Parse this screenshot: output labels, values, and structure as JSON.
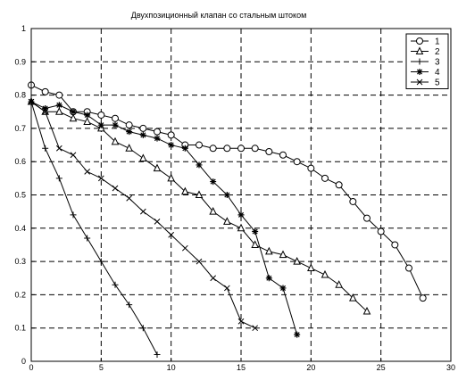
{
  "chart_data": {
    "type": "line",
    "title": "Двухпозиционный клапан со стальным штоком",
    "xlabel": "",
    "ylabel": "",
    "xlim": [
      0,
      30
    ],
    "ylim": [
      0,
      1
    ],
    "xticks": [
      "0",
      "5",
      "10",
      "15",
      "20",
      "25",
      "30"
    ],
    "yticks": [
      "0",
      "0.1",
      "0.2",
      "0.3",
      "0.4",
      "0.5",
      "0.6",
      "0.7",
      "0.8",
      "0.9",
      "1"
    ],
    "grid": true,
    "legend_position": "top-right",
    "series": [
      {
        "name": "1",
        "marker": "circle",
        "x": [
          0,
          1,
          2,
          3,
          4,
          5,
          6,
          7,
          8,
          9,
          10,
          11,
          12,
          13,
          14,
          15,
          16,
          17,
          18,
          19,
          20,
          21,
          22,
          23,
          24,
          25,
          26,
          27,
          28
        ],
        "y": [
          0.83,
          0.81,
          0.8,
          0.75,
          0.75,
          0.74,
          0.73,
          0.71,
          0.7,
          0.69,
          0.68,
          0.65,
          0.65,
          0.64,
          0.64,
          0.64,
          0.64,
          0.63,
          0.62,
          0.6,
          0.58,
          0.55,
          0.53,
          0.48,
          0.43,
          0.39,
          0.35,
          0.28,
          0.19
        ]
      },
      {
        "name": "2",
        "marker": "triangle",
        "x": [
          0,
          1,
          2,
          3,
          4,
          5,
          6,
          7,
          8,
          9,
          10,
          11,
          12,
          13,
          14,
          15,
          16,
          17,
          18,
          19,
          20,
          21,
          22,
          23,
          24
        ],
        "y": [
          0.78,
          0.75,
          0.75,
          0.73,
          0.72,
          0.7,
          0.66,
          0.64,
          0.61,
          0.58,
          0.55,
          0.51,
          0.5,
          0.45,
          0.42,
          0.4,
          0.35,
          0.33,
          0.32,
          0.3,
          0.28,
          0.26,
          0.23,
          0.19,
          0.15
        ]
      },
      {
        "name": "3",
        "marker": "plus",
        "x": [
          0,
          1,
          2,
          3,
          4,
          5,
          6,
          7,
          8,
          9
        ],
        "y": [
          0.78,
          0.64,
          0.55,
          0.44,
          0.37,
          0.3,
          0.23,
          0.17,
          0.1,
          0.02
        ]
      },
      {
        "name": "4",
        "marker": "star",
        "x": [
          0,
          1,
          2,
          3,
          4,
          5,
          6,
          7,
          8,
          9,
          10,
          11,
          12,
          13,
          14,
          15,
          16,
          17,
          18,
          19
        ],
        "y": [
          0.78,
          0.76,
          0.77,
          0.75,
          0.74,
          0.71,
          0.71,
          0.69,
          0.68,
          0.67,
          0.65,
          0.64,
          0.59,
          0.54,
          0.5,
          0.44,
          0.39,
          0.25,
          0.22,
          0.08
        ]
      },
      {
        "name": "5",
        "marker": "x",
        "x": [
          0,
          1,
          2,
          3,
          4,
          5,
          6,
          7,
          8,
          9,
          10,
          11,
          12,
          13,
          14,
          15,
          16
        ],
        "y": [
          0.78,
          0.75,
          0.64,
          0.62,
          0.57,
          0.55,
          0.52,
          0.49,
          0.45,
          0.42,
          0.38,
          0.34,
          0.3,
          0.25,
          0.22,
          0.12,
          0.1
        ]
      }
    ]
  }
}
